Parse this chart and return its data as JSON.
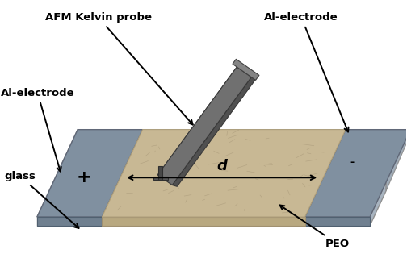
{
  "background_color": "#ffffff",
  "labels": {
    "afm_probe": "AFM Kelvin probe",
    "al_electrode_top": "Al-electrode",
    "al_electrode_left": "Al-electrode",
    "glass": "glass",
    "peo": "PEO",
    "d": "d",
    "plus": "+",
    "minus": "-"
  },
  "colors": {
    "glass_top": "#c8d0d8",
    "glass_side": "#a8b4bc",
    "glass_front": "#b0bcc4",
    "electrode": "#8898a8",
    "electrode_side": "#6878888",
    "electrode_front": "#7888988",
    "peo": "#c8b894",
    "peo_dark": "#b0a07c",
    "probe_dark": "#404040",
    "probe_mid": "#606060",
    "probe_light": "#787878",
    "probe_highlight": "#909090"
  },
  "figsize": [
    5.04,
    3.46
  ],
  "dpi": 100
}
